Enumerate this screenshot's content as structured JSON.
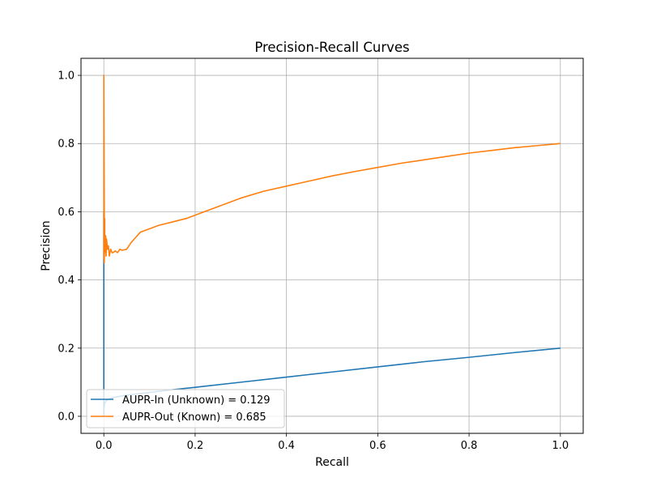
{
  "chart_data": {
    "type": "line",
    "title": "Precision-Recall Curves",
    "xlabel": "Recall",
    "ylabel": "Precision",
    "xlim": [
      -0.05,
      1.05
    ],
    "ylim": [
      -0.05,
      1.05
    ],
    "xticks": [
      0.0,
      0.2,
      0.4,
      0.6,
      0.8,
      1.0
    ],
    "xtick_labels": [
      "0.0",
      "0.2",
      "0.4",
      "0.6",
      "0.8",
      "1.0"
    ],
    "yticks": [
      0.0,
      0.2,
      0.4,
      0.6,
      0.8,
      1.0
    ],
    "ytick_labels": [
      "0.0",
      "0.2",
      "0.4",
      "0.6",
      "0.8",
      "1.0"
    ],
    "grid": true,
    "legend_position": "bottom-left",
    "series": [
      {
        "name": "AUPR-In (Unknown) = 0.129",
        "color": "#1f77b4",
        "x": [
          0.0,
          0.0,
          0.0,
          0.002,
          0.005,
          0.01,
          0.02,
          0.05,
          0.1,
          0.15,
          0.2,
          0.3,
          0.4,
          0.5,
          0.6,
          0.7,
          0.8,
          0.9,
          1.0
        ],
        "y": [
          0.0,
          0.6,
          0.02,
          0.04,
          0.045,
          0.05,
          0.055,
          0.062,
          0.07,
          0.078,
          0.085,
          0.1,
          0.115,
          0.13,
          0.145,
          0.16,
          0.173,
          0.187,
          0.2
        ]
      },
      {
        "name": "AUPR-Out (Known) = 0.685",
        "color": "#ff7f0e",
        "x": [
          0.0,
          0.0,
          0.001,
          0.001,
          0.002,
          0.002,
          0.003,
          0.004,
          0.005,
          0.006,
          0.008,
          0.01,
          0.012,
          0.015,
          0.018,
          0.02,
          0.025,
          0.03,
          0.035,
          0.04,
          0.05,
          0.06,
          0.07,
          0.08,
          0.1,
          0.12,
          0.15,
          0.18,
          0.2,
          0.25,
          0.3,
          0.35,
          0.4,
          0.45,
          0.5,
          0.55,
          0.6,
          0.65,
          0.7,
          0.75,
          0.8,
          0.85,
          0.9,
          0.95,
          1.0
        ],
        "y": [
          0.46,
          1.0,
          0.6,
          0.45,
          0.58,
          0.48,
          0.5,
          0.53,
          0.47,
          0.52,
          0.49,
          0.5,
          0.47,
          0.49,
          0.48,
          0.48,
          0.485,
          0.48,
          0.49,
          0.487,
          0.49,
          0.51,
          0.525,
          0.54,
          0.55,
          0.56,
          0.57,
          0.58,
          0.59,
          0.615,
          0.64,
          0.66,
          0.675,
          0.69,
          0.705,
          0.718,
          0.73,
          0.742,
          0.752,
          0.762,
          0.772,
          0.78,
          0.788,
          0.794,
          0.8
        ]
      }
    ]
  }
}
